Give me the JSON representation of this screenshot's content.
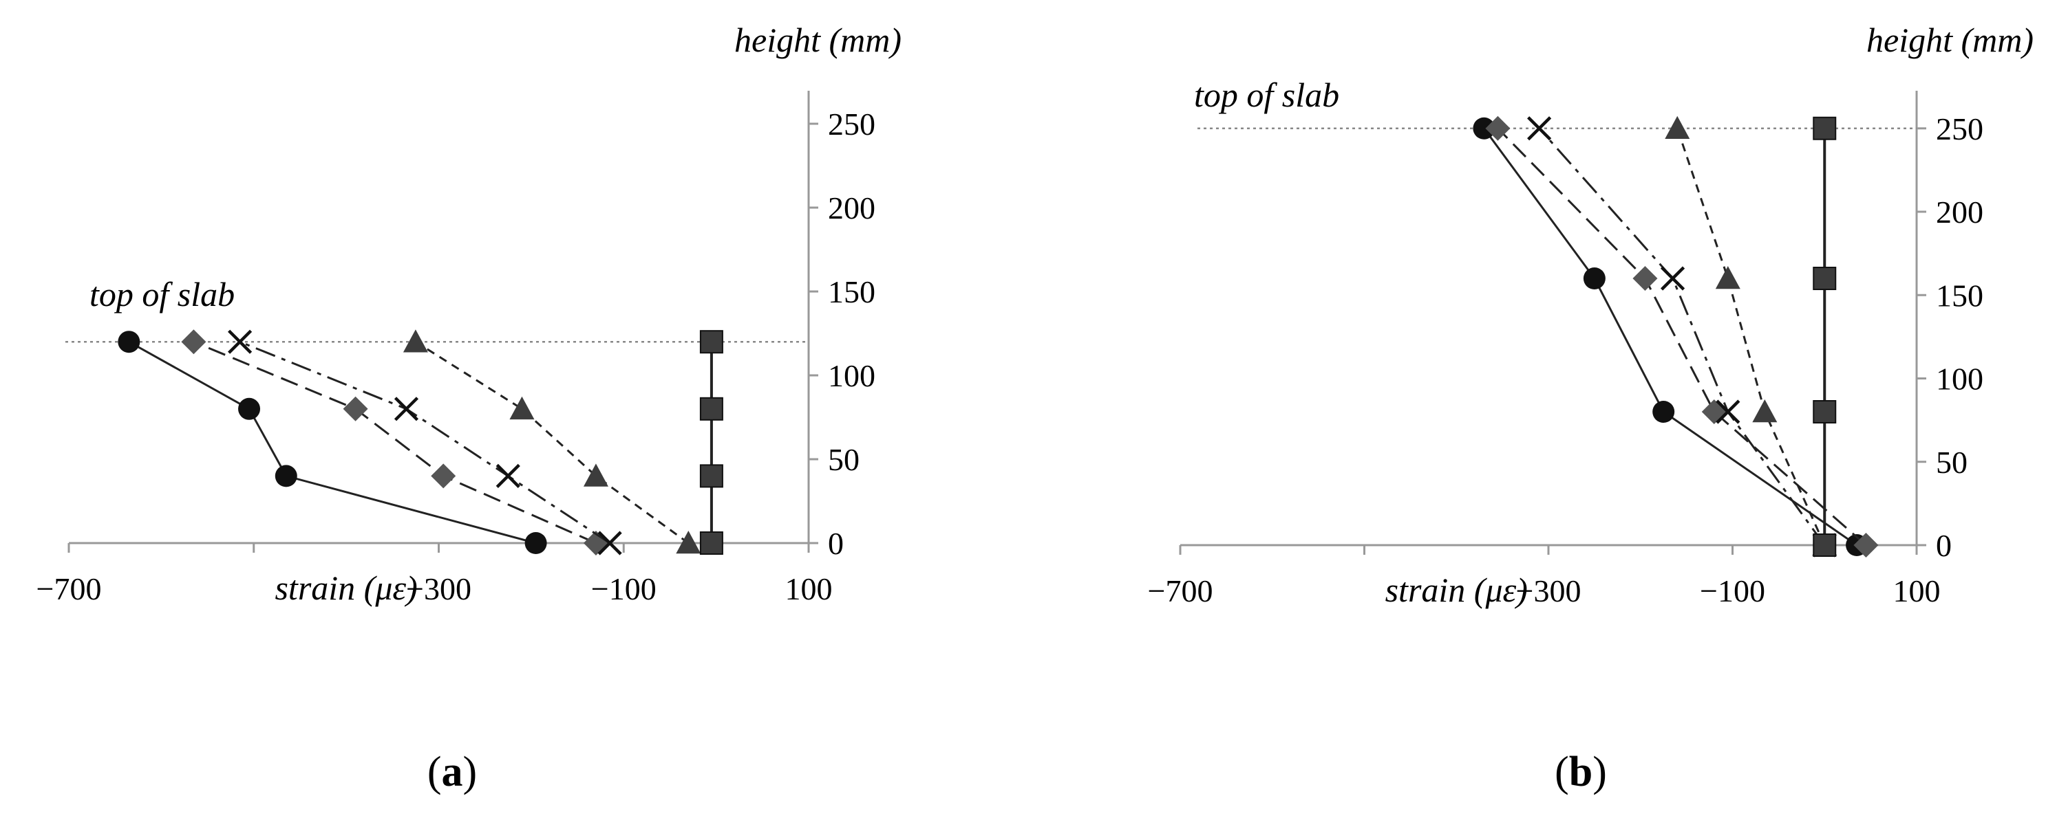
{
  "chart_data": [
    {
      "type": "line",
      "panel_label": "a",
      "panel_label_display": "(a)",
      "xlabel": "strain (με)",
      "ylabel": "height (mm)",
      "annotation": "top of slab",
      "top_of_slab": 120,
      "xlim": [
        -700,
        100
      ],
      "ylim": [
        0,
        270
      ],
      "x_ticks": [
        -700,
        -300,
        -100,
        100
      ],
      "x_tick_labels": [
        "−700",
        "−300",
        "−100",
        "100"
      ],
      "y_ticks": [
        0,
        50,
        100,
        150,
        200,
        250
      ],
      "y_tick_labels": [
        "0",
        "50",
        "100",
        "150",
        "200",
        "250"
      ],
      "series": [
        {
          "marker": "circle",
          "dash": "solid",
          "points": [
            [
              -195,
              0
            ],
            [
              -465,
              40
            ],
            [
              -505,
              80
            ],
            [
              -635,
              120
            ]
          ]
        },
        {
          "marker": "diamond",
          "dash": "dashed",
          "points": [
            [
              -130,
              0
            ],
            [
              -295,
              40
            ],
            [
              -390,
              80
            ],
            [
              -565,
              120
            ]
          ]
        },
        {
          "marker": "x",
          "dash": "dashdot",
          "points": [
            [
              -115,
              0
            ],
            [
              -225,
              40
            ],
            [
              -335,
              80
            ],
            [
              -515,
              120
            ]
          ]
        },
        {
          "marker": "triangle",
          "dash": "dotted",
          "points": [
            [
              -30,
              0
            ],
            [
              -130,
              40
            ],
            [
              -210,
              80
            ],
            [
              -325,
              120
            ]
          ]
        },
        {
          "marker": "square",
          "dash": "solid",
          "points": [
            [
              -5,
              0
            ],
            [
              -5,
              40
            ],
            [
              -5,
              80
            ],
            [
              -5,
              120
            ]
          ]
        }
      ]
    },
    {
      "type": "line",
      "panel_label": "b",
      "panel_label_display": "(b)",
      "xlabel": "strain (με)",
      "ylabel": "height (mm)",
      "annotation": "top of slab",
      "top_of_slab": 250,
      "xlim": [
        -700,
        100
      ],
      "ylim": [
        0,
        270
      ],
      "x_ticks": [
        -700,
        -300,
        -100,
        100
      ],
      "x_tick_labels": [
        "−700",
        "−300",
        "−100",
        "100"
      ],
      "y_ticks": [
        0,
        50,
        100,
        150,
        200,
        250
      ],
      "y_tick_labels": [
        "0",
        "50",
        "100",
        "150",
        "200",
        "250"
      ],
      "series": [
        {
          "marker": "circle",
          "dash": "solid",
          "points": [
            [
              35,
              0
            ],
            [
              -175,
              80
            ],
            [
              -250,
              160
            ],
            [
              -370,
              250
            ]
          ]
        },
        {
          "marker": "diamond",
          "dash": "dashed",
          "points": [
            [
              45,
              0
            ],
            [
              -120,
              80
            ],
            [
              -195,
              160
            ],
            [
              -355,
              250
            ]
          ]
        },
        {
          "marker": "x",
          "dash": "dashdot",
          "points": [
            [
              0,
              0
            ],
            [
              -105,
              80
            ],
            [
              -165,
              160
            ],
            [
              -310,
              250
            ]
          ]
        },
        {
          "marker": "triangle",
          "dash": "dotted",
          "points": [
            [
              0,
              0
            ],
            [
              -65,
              80
            ],
            [
              -105,
              160
            ],
            [
              -160,
              250
            ]
          ]
        },
        {
          "marker": "square",
          "dash": "solid",
          "points": [
            [
              0,
              0
            ],
            [
              0,
              80
            ],
            [
              0,
              160
            ],
            [
              0,
              250
            ]
          ]
        }
      ]
    }
  ]
}
